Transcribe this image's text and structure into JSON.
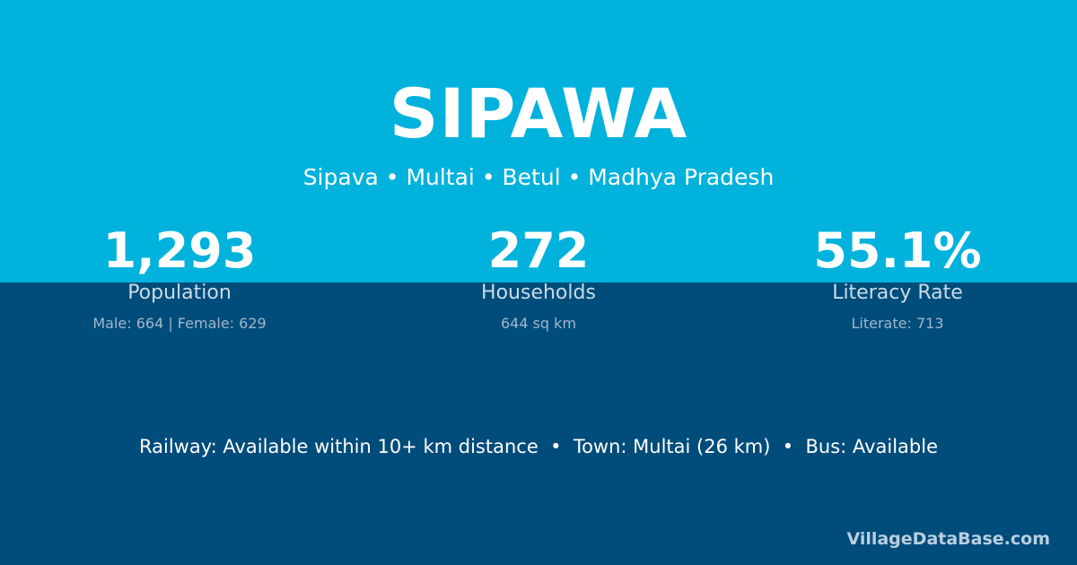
{
  "title": "SIPAWA",
  "subtitle": "Sipava • Multai • Betul • Madhya Pradesh",
  "stats": [
    {
      "value": "1,293",
      "label": "Population",
      "detail": "Male: 664 | Female: 629"
    },
    {
      "value": "272",
      "label": "Households",
      "detail": "644 sq km"
    },
    {
      "value": "55.1%",
      "label": "Literacy Rate",
      "detail": "Literate: 713"
    }
  ],
  "footer": "Railway: Available within 10+ km distance  •  Town: Multai (26 km)  •  Bus: Available",
  "brand": "VillageDataBase.com",
  "colors": {
    "top": "#00b2dc",
    "bottom": "#004c7a"
  }
}
